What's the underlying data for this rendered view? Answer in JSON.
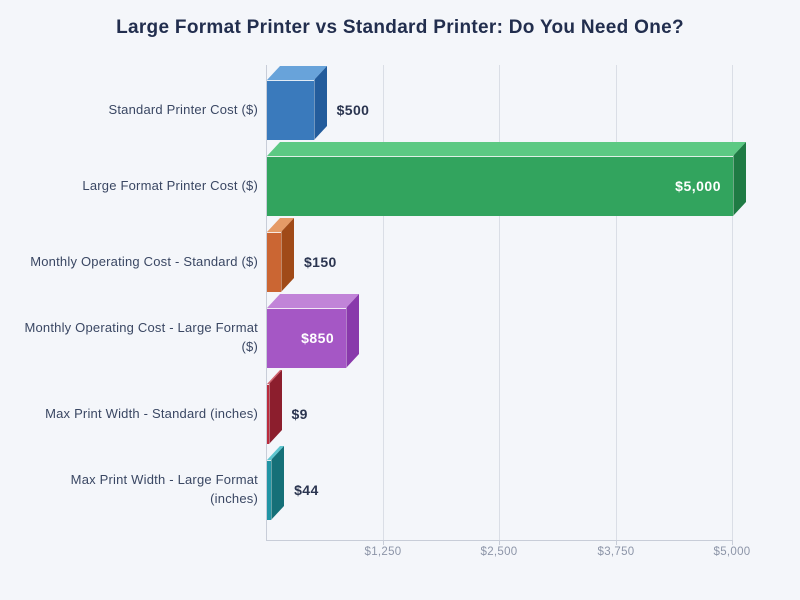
{
  "title": "Large Format Printer vs Standard Printer: Do You Need One?",
  "chart_data": {
    "type": "bar",
    "orientation": "horizontal",
    "title": "Large Format Printer vs Standard Printer: Do You Need One?",
    "xlabel": "",
    "ylabel": "",
    "xlim": [
      0,
      5000
    ],
    "grid": "vertical",
    "legend": "none",
    "style": "3d-bars",
    "x_ticks": [
      {
        "value": 1250,
        "label": "$1,250"
      },
      {
        "value": 2500,
        "label": "$2,500"
      },
      {
        "value": 3750,
        "label": "$3,750"
      },
      {
        "value": 5000,
        "label": "$5,000"
      }
    ],
    "categories": [
      "Standard Printer Cost ($)",
      "Large Format Printer Cost ($)",
      "Monthly Operating Cost - Standard ($)",
      "Monthly Operating Cost - Large Format ($)",
      "Max Print Width - Standard (inches)",
      "Max Print Width - Large Format (inches)"
    ],
    "values": [
      500,
      5000,
      150,
      850,
      9,
      44
    ],
    "bars": [
      {
        "category": "Standard Printer Cost ($)",
        "lines": [
          "Standard Printer Cost ($)"
        ],
        "value": 500,
        "label": "$500",
        "label_inside": false,
        "colors": {
          "front": "#3a7abc",
          "top": "#68a3da",
          "side": "#235c9c"
        }
      },
      {
        "category": "Large Format Printer Cost ($)",
        "lines": [
          "Large Format Printer Cost ($)"
        ],
        "value": 5000,
        "label": "$5,000",
        "label_inside": true,
        "colors": {
          "front": "#32a45e",
          "top": "#5cc983",
          "side": "#1f7b44"
        }
      },
      {
        "category": "Monthly Operating Cost - Standard ($)",
        "lines": [
          "Monthly Operating Cost - Standard ($)"
        ],
        "value": 150,
        "label": "$150",
        "label_inside": false,
        "colors": {
          "front": "#cb6633",
          "top": "#e59a66",
          "side": "#a04a18"
        }
      },
      {
        "category": "Monthly Operating Cost - Large Format ($)",
        "lines": [
          "Monthly Operating Cost - Large Format",
          "($)"
        ],
        "value": 850,
        "label": "$850",
        "label_inside": true,
        "colors": {
          "front": "#a557c5",
          "top": "#c184d8",
          "side": "#8939ab"
        }
      },
      {
        "category": "Max Print Width - Standard (inches)",
        "lines": [
          "Max Print Width - Standard (inches)"
        ],
        "value": 9,
        "label": "$9",
        "label_inside": false,
        "colors": {
          "front": "#bb2b3d",
          "top": "#d1606c",
          "side": "#8c1e2d"
        }
      },
      {
        "category": "Max Print Width - Large Format (inches)",
        "lines": [
          "Max Print Width - Large Format",
          "(inches)"
        ],
        "value": 44,
        "label": "$44",
        "label_inside": false,
        "colors": {
          "front": "#2295a5",
          "top": "#5ec5cf",
          "side": "#157078"
        }
      }
    ],
    "text_colors": {
      "title": "#222e4e",
      "category_label": "#3a4763",
      "value_label_outside": "#2b3550",
      "value_label_inside": "#ffffff",
      "tick_label": "#8d95a8"
    }
  }
}
